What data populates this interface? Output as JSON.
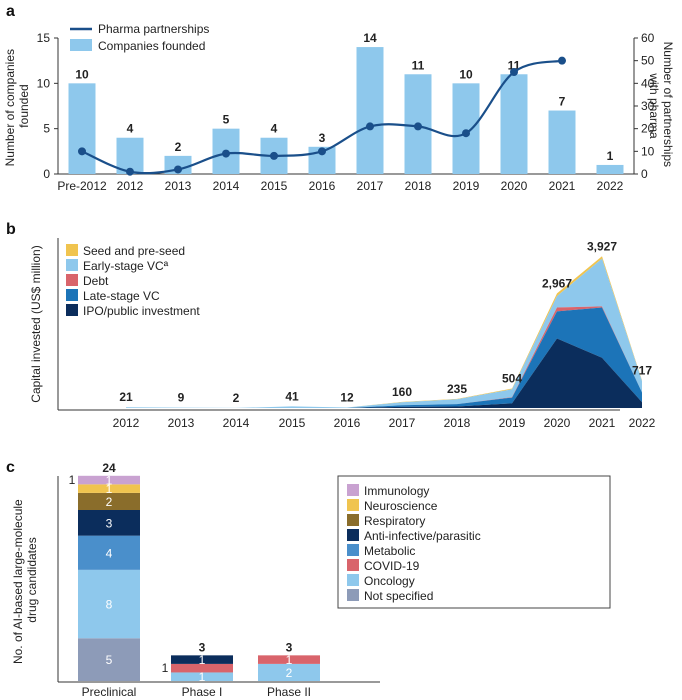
{
  "chart_data": [
    {
      "panel": "a",
      "type": "bar",
      "categories": [
        "Pre-2012",
        "2012",
        "2013",
        "2014",
        "2015",
        "2016",
        "2017",
        "2018",
        "2019",
        "2020",
        "2021",
        "2022"
      ],
      "series": [
        {
          "name": "Companies founded",
          "type": "bar",
          "values": [
            10,
            4,
            2,
            5,
            4,
            3,
            14,
            11,
            10,
            11,
            7,
            1
          ],
          "color": "#8ec8ec"
        },
        {
          "name": "Pharma partnerships",
          "type": "line",
          "values": [
            10,
            1,
            2,
            9,
            8,
            10,
            21,
            21,
            18,
            45,
            50,
            null
          ],
          "color": "#1a4f8a"
        }
      ],
      "data_labels": [
        "10",
        "4",
        "2",
        "5",
        "4",
        "3",
        "14",
        "11",
        "10",
        "11",
        "7",
        "1"
      ],
      "ylabel": "Number of companies founded",
      "ylabel_lines": [
        "Number of companies",
        "founded"
      ],
      "y2label": "Number of partnerships with pharma",
      "y2label_lines": [
        "Number of partnerships",
        "with pharma"
      ],
      "ylim": [
        0,
        15
      ],
      "yticks": [
        "0",
        "5",
        "10",
        "15"
      ],
      "y2lim": [
        0,
        60
      ],
      "y2ticks": [
        "0",
        "10",
        "20",
        "30",
        "40",
        "50",
        "60"
      ],
      "legend": [
        "Pharma partnerships",
        "Companies founded"
      ],
      "legend_position": "top-left"
    },
    {
      "panel": "b",
      "type": "area",
      "categories": [
        "2012",
        "2013",
        "2014",
        "2015",
        "2016",
        "2017",
        "2018",
        "2019",
        "2020",
        "2021",
        "2022"
      ],
      "totals": [
        "21",
        "9",
        "2",
        "41",
        "12",
        "160",
        "235",
        "504",
        "2,967",
        "3,927",
        "717"
      ],
      "series": [
        {
          "name": "IPO/public investment",
          "values": [
            0,
            0,
            0,
            0,
            0,
            30,
            40,
            120,
            1800,
            1300,
            150
          ],
          "color": "#0b2d5c"
        },
        {
          "name": "Late-stage VC",
          "values": [
            0,
            0,
            0,
            0,
            0,
            40,
            60,
            150,
            700,
            1300,
            250
          ],
          "color": "#1c74b8"
        },
        {
          "name": "Debt",
          "values": [
            0,
            0,
            0,
            0,
            0,
            0,
            0,
            10,
            100,
            30,
            0
          ],
          "color": "#d9646b"
        },
        {
          "name": "Early-stage VCª",
          "values": [
            21,
            9,
            2,
            41,
            12,
            80,
            125,
            204,
            297,
            1237,
            297
          ],
          "color": "#8ec8ec"
        },
        {
          "name": "Seed and pre-seed",
          "values": [
            0,
            0,
            0,
            0,
            0,
            10,
            10,
            20,
            70,
            60,
            20
          ],
          "color": "#f0c44f"
        }
      ],
      "ylabel": "Capital invested (US$ million)",
      "ylim": [
        0,
        4400
      ],
      "legend": [
        "Seed and pre-seed",
        "Early-stage VCª",
        "Debt",
        "Late-stage VC",
        "IPO/public investment"
      ],
      "legend_position": "top-left"
    },
    {
      "panel": "c",
      "type": "bar",
      "stacked": true,
      "categories": [
        "Preclinical",
        "Phase I",
        "Phase II"
      ],
      "totals": [
        "24",
        "3",
        "3"
      ],
      "series": [
        {
          "name": "Not specified",
          "values": [
            5,
            0,
            0
          ],
          "color": "#8d9bb8"
        },
        {
          "name": "Oncology",
          "values": [
            8,
            1,
            2
          ],
          "color": "#8ec8ec"
        },
        {
          "name": "COVID-19",
          "values": [
            0,
            1,
            1
          ],
          "color": "#d9646b"
        },
        {
          "name": "Metabolic",
          "values": [
            4,
            0,
            0
          ],
          "color": "#4a8fcb"
        },
        {
          "name": "Anti-infective/parasitic",
          "values": [
            3,
            1,
            0
          ],
          "color": "#0b2d5c"
        },
        {
          "name": "Respiratory",
          "values": [
            2,
            0,
            0
          ],
          "color": "#8a6d2b"
        },
        {
          "name": "Neuroscience",
          "values": [
            1,
            0,
            0
          ],
          "color": "#f0c44f"
        },
        {
          "name": "Immunology",
          "values": [
            1,
            0,
            0
          ],
          "color": "#c9a2d1"
        }
      ],
      "segment_labels": [
        [
          "5",
          "8",
          "",
          "4",
          "3",
          "2",
          "1",
          "1"
        ],
        [
          "",
          "1",
          "",
          "",
          "1",
          "",
          "",
          ""
        ],
        [
          "",
          "2",
          "1",
          "",
          "",
          "",
          "",
          ""
        ]
      ],
      "side_labels": [
        "1",
        "1",
        ""
      ],
      "ylabel": "No. of AI-based large-molecule drug candidates",
      "ylabel_lines": [
        "No. of AI-based large-molecule",
        "drug candidates"
      ],
      "legend": [
        "Immunology",
        "Neuroscience",
        "Respiratory",
        "Anti-infective/parasitic",
        "Metabolic",
        "COVID-19",
        "Oncology",
        "Not specified"
      ],
      "legend_position": "right"
    }
  ]
}
